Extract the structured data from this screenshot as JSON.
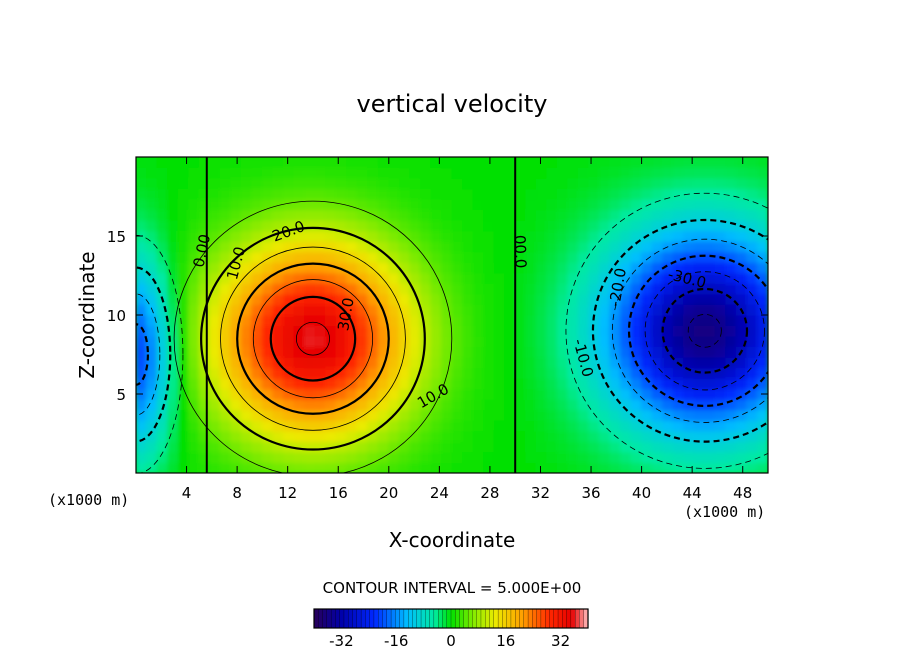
{
  "chart_data": {
    "type": "heatmap",
    "title": "vertical velocity",
    "xlabel": "X-coordinate",
    "ylabel": "Z-coordinate",
    "xlim": [
      0,
      50
    ],
    "ylim": [
      0,
      20
    ],
    "x_ticks": [
      4,
      8,
      12,
      16,
      20,
      24,
      28,
      32,
      36,
      40,
      44,
      48
    ],
    "y_ticks": [
      5,
      10,
      15
    ],
    "x_unit_label": "(x1000 m)",
    "z_unit_label": "(x1000 m)",
    "contour_interval_text": "CONTOUR INTERVAL = 5.000E+00",
    "contour_interval": 5.0,
    "contour_labels": [
      {
        "text": "0.00",
        "x": 5.6,
        "z": 14.0,
        "rotate": -78
      },
      {
        "text": "10.0",
        "x": 8.3,
        "z": 13.2,
        "rotate": -75
      },
      {
        "text": "20.0",
        "x": 12.2,
        "z": 15.0,
        "rotate": -20
      },
      {
        "text": "30.0",
        "x": 17.0,
        "z": 10.0,
        "rotate": -80
      },
      {
        "text": "10.0",
        "x": 23.7,
        "z": 4.6,
        "rotate": -30
      },
      {
        "text": "00.0",
        "x": 30.0,
        "z": 14.0,
        "rotate": 88
      },
      {
        "text": "-20.0",
        "x": 38.5,
        "z": 11.7,
        "rotate": -80
      },
      {
        "text": "-30.0",
        "x": 43.5,
        "z": 12.0,
        "rotate": 14
      },
      {
        "text": "-10.0",
        "x": 35.0,
        "z": 7.2,
        "rotate": 75
      }
    ],
    "fields": [
      {
        "name": "updraft",
        "x": 14.0,
        "z": 8.5,
        "amplitude": 36
      },
      {
        "name": "downdraft-east",
        "x": 45.0,
        "z": 9.0,
        "amplitude": -36
      },
      {
        "name": "downdraft-west",
        "x": 0.0,
        "z": 7.5,
        "amplitude": -22
      }
    ],
    "colorbar": {
      "min": -40,
      "max": 40,
      "ticks": [
        "-32",
        "-16",
        "0",
        "16",
        "32"
      ],
      "tick_values": [
        -32,
        -16,
        0,
        16,
        32
      ]
    }
  }
}
